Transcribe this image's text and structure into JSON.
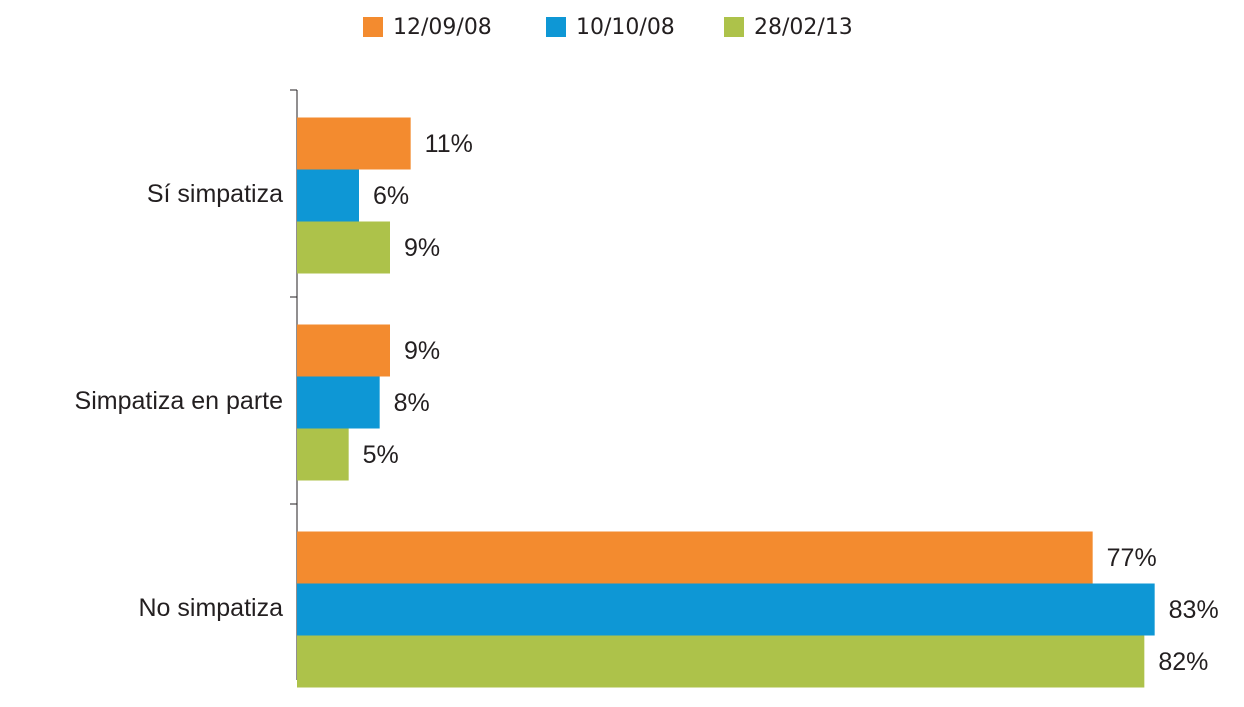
{
  "chart_data": {
    "type": "bar",
    "orientation": "horizontal",
    "categories": [
      "Sí simpatiza",
      "Simpatiza en parte",
      "No simpatiza"
    ],
    "series": [
      {
        "name": "12/09/08",
        "color": "#f38b2f",
        "values": [
          11,
          9,
          77
        ],
        "value_labels": [
          "11%",
          "9%",
          "77%"
        ]
      },
      {
        "name": "10/10/08",
        "color": "#0e97d5",
        "values": [
          6,
          8,
          83
        ],
        "value_labels": [
          "6%",
          "8%",
          "83%"
        ]
      },
      {
        "name": "28/02/13",
        "color": "#adc24a",
        "values": [
          9,
          5,
          82
        ],
        "value_labels": [
          "9%",
          "5%",
          "82%"
        ]
      }
    ],
    "xlim": [
      0,
      90
    ],
    "legend": "top"
  }
}
